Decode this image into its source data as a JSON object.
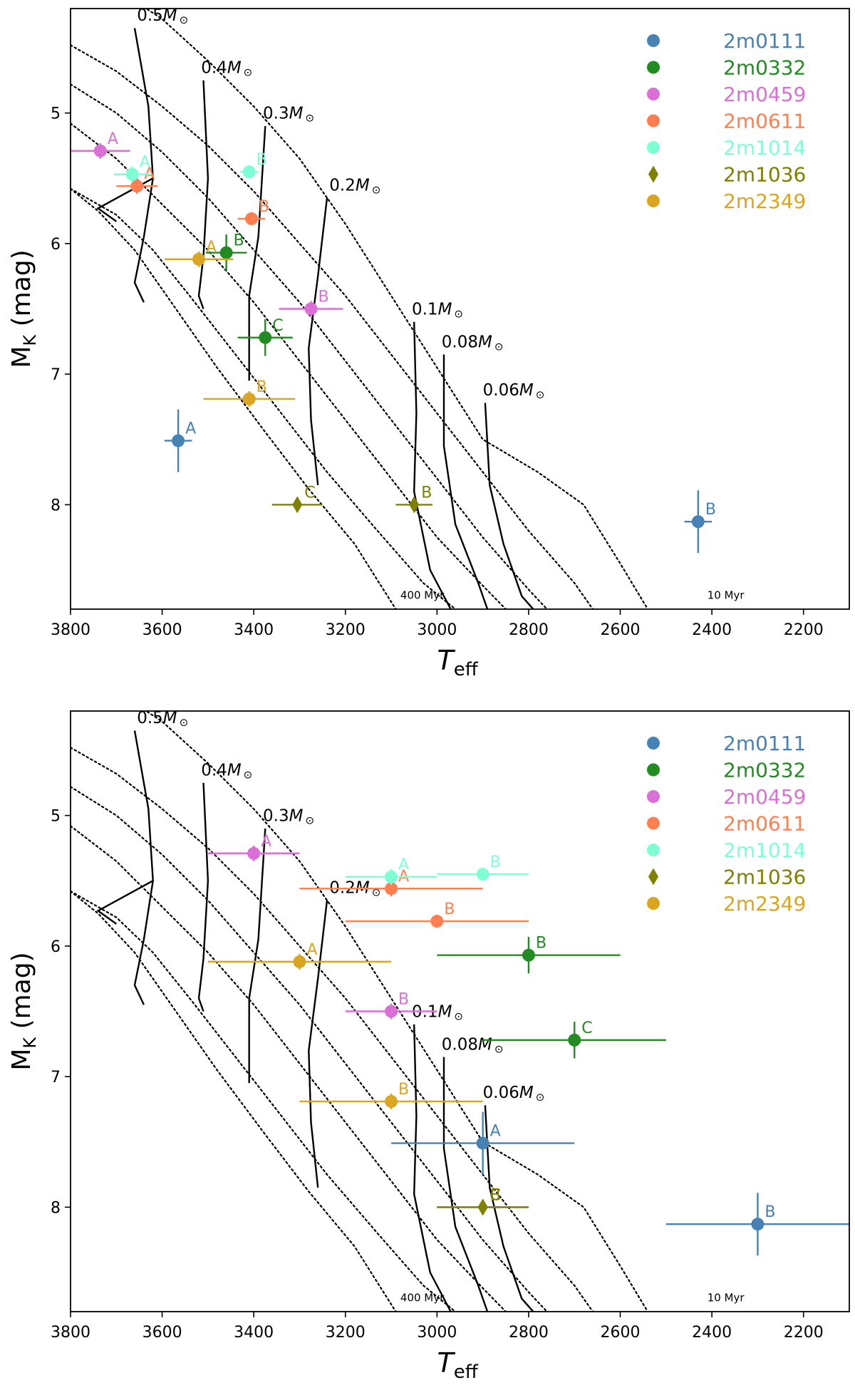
{
  "colors": {
    "2m0111": "#4682b4",
    "2m0332": "#228b22",
    "2m0459": "#da70d6",
    "2m0611": "#ff7f50",
    "2m1014": "#7fffd4",
    "2m1036": "#808000",
    "2m2349": "#daa520"
  },
  "chart_data": [
    {
      "type": "scatter",
      "panel": "top",
      "xlabel": "T",
      "xlabel_sub": "eff",
      "ylabel": "M",
      "ylabel_sub": "K",
      "ylabel_suffix": " (mag)",
      "xlim": [
        3800,
        2100
      ],
      "ylim": [
        8.8,
        4.2
      ],
      "xticks": [
        3800,
        3600,
        3400,
        3200,
        3000,
        2800,
        2600,
        2400,
        2200
      ],
      "yticks": [
        5,
        6,
        7,
        8
      ],
      "legend": {
        "position": "top-right",
        "entries": [
          {
            "name": "2m0111",
            "marker": "circle"
          },
          {
            "name": "2m0332",
            "marker": "circle"
          },
          {
            "name": "2m0459",
            "marker": "circle"
          },
          {
            "name": "2m0611",
            "marker": "circle"
          },
          {
            "name": "2m1014",
            "marker": "circle"
          },
          {
            "name": "2m1036",
            "marker": "diamond"
          },
          {
            "name": "2m2349",
            "marker": "circle"
          }
        ]
      },
      "isochrone_labels": [
        "400 Myr",
        "10 Myr"
      ],
      "isochrones": [
        [
          [
            3800,
            5.58
          ],
          [
            3740,
            5.75
          ],
          [
            3660,
            6.05
          ],
          [
            3580,
            6.45
          ],
          [
            3480,
            6.95
          ],
          [
            3380,
            7.42
          ],
          [
            3280,
            7.88
          ],
          [
            3180,
            8.3
          ],
          [
            3090,
            8.8
          ]
        ],
        [
          [
            3800,
            5.58
          ],
          [
            3700,
            5.78
          ],
          [
            3620,
            6.05
          ],
          [
            3540,
            6.4
          ],
          [
            3440,
            6.85
          ],
          [
            3340,
            7.3
          ],
          [
            3240,
            7.75
          ],
          [
            3130,
            8.2
          ],
          [
            3030,
            8.6
          ],
          [
            2960,
            8.8
          ]
        ],
        [
          [
            3800,
            5.08
          ],
          [
            3700,
            5.35
          ],
          [
            3600,
            5.7
          ],
          [
            3500,
            6.05
          ],
          [
            3400,
            6.45
          ],
          [
            3300,
            6.9
          ],
          [
            3200,
            7.35
          ],
          [
            3100,
            7.8
          ],
          [
            3000,
            8.25
          ],
          [
            2900,
            8.62
          ],
          [
            2850,
            8.8
          ]
        ],
        [
          [
            3800,
            4.78
          ],
          [
            3700,
            5.0
          ],
          [
            3600,
            5.3
          ],
          [
            3500,
            5.65
          ],
          [
            3400,
            6.05
          ],
          [
            3300,
            6.45
          ],
          [
            3200,
            6.9
          ],
          [
            3100,
            7.35
          ],
          [
            3000,
            7.8
          ],
          [
            2900,
            8.25
          ],
          [
            2800,
            8.65
          ],
          [
            2760,
            8.8
          ]
        ],
        [
          [
            3800,
            4.48
          ],
          [
            3700,
            4.68
          ],
          [
            3600,
            4.95
          ],
          [
            3500,
            5.25
          ],
          [
            3400,
            5.6
          ],
          [
            3300,
            6.0
          ],
          [
            3200,
            6.4
          ],
          [
            3100,
            6.85
          ],
          [
            3000,
            7.3
          ],
          [
            2900,
            7.75
          ],
          [
            2800,
            8.2
          ],
          [
            2700,
            8.6
          ],
          [
            2660,
            8.8
          ]
        ],
        [
          [
            3800,
            3.88
          ],
          [
            3700,
            4.05
          ],
          [
            3600,
            4.28
          ],
          [
            3500,
            4.6
          ],
          [
            3400,
            4.95
          ],
          [
            3300,
            5.35
          ],
          [
            3200,
            5.85
          ],
          [
            3100,
            6.4
          ],
          [
            3000,
            6.95
          ],
          [
            2900,
            7.5
          ],
          [
            2780,
            7.75
          ],
          [
            2680,
            8.0
          ],
          [
            2600,
            8.45
          ],
          [
            2540,
            8.8
          ]
        ]
      ],
      "mass_tracks": [
        {
          "label": "0.5",
          "points": [
            [
              3660,
              4.35
            ],
            [
              3630,
              4.95
            ],
            [
              3620,
              5.5
            ],
            [
              3640,
              5.95
            ],
            [
              3660,
              6.3
            ],
            [
              3640,
              6.45
            ]
          ],
          "label_at": [
            3655,
            4.25
          ]
        },
        {
          "label": "0.4",
          "points": [
            [
              3510,
              4.75
            ],
            [
              3500,
              5.5
            ],
            [
              3510,
              6.1
            ],
            [
              3520,
              6.4
            ],
            [
              3510,
              6.5
            ]
          ],
          "label_at": [
            3515,
            4.65
          ]
        },
        {
          "label": "0.3",
          "points": [
            [
              3375,
              5.1
            ],
            [
              3390,
              5.95
            ],
            [
              3410,
              6.4
            ],
            [
              3410,
              7.05
            ]
          ],
          "label_at": [
            3380,
            5.0
          ]
        },
        {
          "label": "0.2",
          "points": [
            [
              3240,
              5.65
            ],
            [
              3260,
              6.25
            ],
            [
              3280,
              6.8
            ],
            [
              3275,
              7.35
            ],
            [
              3260,
              7.85
            ]
          ],
          "label_at": [
            3235,
            5.55
          ]
        },
        {
          "label": "0.1",
          "points": [
            [
              3050,
              6.6
            ],
            [
              3045,
              7.3
            ],
            [
              3050,
              7.9
            ],
            [
              3015,
              8.5
            ],
            [
              2970,
              8.8
            ]
          ],
          "label_at": [
            3055,
            6.5
          ]
        },
        {
          "label": "0.08",
          "points": [
            [
              2985,
              6.85
            ],
            [
              2985,
              7.55
            ],
            [
              2960,
              8.15
            ],
            [
              2910,
              8.6
            ],
            [
              2890,
              8.8
            ]
          ],
          "label_at": [
            2990,
            6.75
          ]
        },
        {
          "label": "0.06",
          "points": [
            [
              2895,
              7.22
            ],
            [
              2885,
              7.85
            ],
            [
              2855,
              8.3
            ],
            [
              2815,
              8.7
            ],
            [
              2790,
              8.8
            ]
          ],
          "label_at": [
            2900,
            7.12
          ]
        }
      ],
      "points": [
        {
          "system": "2m0111",
          "comp": "A",
          "teff": 3565,
          "teff_err": 30,
          "mk": 7.51,
          "mk_err": 0.24,
          "marker": "circle"
        },
        {
          "system": "2m0111",
          "comp": "B",
          "teff": 2430,
          "teff_err": 30,
          "mk": 8.13,
          "mk_err": 0.24,
          "marker": "circle"
        },
        {
          "system": "2m0332",
          "comp": "B",
          "teff": 3460,
          "teff_err": 45,
          "mk": 6.07,
          "mk_err": 0.14,
          "marker": "circle"
        },
        {
          "system": "2m0332",
          "comp": "C",
          "teff": 3375,
          "teff_err": 60,
          "mk": 6.72,
          "mk_err": 0.14,
          "marker": "circle"
        },
        {
          "system": "2m0459",
          "comp": "A",
          "teff": 3735,
          "teff_err": 65,
          "mk": 5.29,
          "mk_err": 0.06,
          "marker": "circle"
        },
        {
          "system": "2m0459",
          "comp": "B",
          "teff": 3275,
          "teff_err": 70,
          "mk": 6.5,
          "mk_err": 0.06,
          "marker": "circle"
        },
        {
          "system": "2m0611",
          "comp": "A",
          "teff": 3655,
          "teff_err": 45,
          "mk": 5.56,
          "mk_err": 0.06,
          "marker": "circle"
        },
        {
          "system": "2m0611",
          "comp": "B",
          "teff": 3405,
          "teff_err": 30,
          "mk": 5.81,
          "mk_err": 0.05,
          "marker": "circle"
        },
        {
          "system": "2m1014",
          "comp": "A",
          "teff": 3665,
          "teff_err": 40,
          "mk": 5.47,
          "mk_err": 0.06,
          "marker": "circle"
        },
        {
          "system": "2m1014",
          "comp": "B",
          "teff": 3410,
          "teff_err": 20,
          "mk": 5.45,
          "mk_err": 0.05,
          "marker": "circle"
        },
        {
          "system": "2m1036",
          "comp": "C",
          "teff": 3305,
          "teff_err": 55,
          "mk": 8.0,
          "mk_err": 0.04,
          "marker": "diamond"
        },
        {
          "system": "2m1036",
          "comp": "B",
          "teff": 3050,
          "teff_err": 40,
          "mk": 8.0,
          "mk_err": 0.04,
          "marker": "diamond"
        },
        {
          "system": "2m2349",
          "comp": "A",
          "teff": 3520,
          "teff_err": 75,
          "mk": 6.12,
          "mk_err": 0.06,
          "marker": "circle"
        },
        {
          "system": "2m2349",
          "comp": "B",
          "teff": 3410,
          "teff_err": 100,
          "mk": 7.19,
          "mk_err": 0.06,
          "marker": "circle"
        }
      ]
    },
    {
      "type": "scatter",
      "panel": "bottom",
      "xlabel": "T",
      "xlabel_sub": "eff",
      "ylabel": "M",
      "ylabel_sub": "K",
      "ylabel_suffix": " (mag)",
      "xlim": [
        3800,
        2100
      ],
      "ylim": [
        8.8,
        4.2
      ],
      "xticks": [
        3800,
        3600,
        3400,
        3200,
        3000,
        2800,
        2600,
        2400,
        2200
      ],
      "yticks": [
        5,
        6,
        7,
        8
      ],
      "legend": {
        "position": "top-right",
        "entries": [
          {
            "name": "2m0111",
            "marker": "circle"
          },
          {
            "name": "2m0332",
            "marker": "circle"
          },
          {
            "name": "2m0459",
            "marker": "circle"
          },
          {
            "name": "2m0611",
            "marker": "circle"
          },
          {
            "name": "2m1014",
            "marker": "circle"
          },
          {
            "name": "2m1036",
            "marker": "diamond"
          },
          {
            "name": "2m2349",
            "marker": "circle"
          }
        ]
      },
      "isochrone_labels": [
        "400 Myr.",
        "10 Myr"
      ],
      "isochrones": "same as top panel",
      "mass_tracks": "same as top panel",
      "points": [
        {
          "system": "2m0111",
          "comp": "A",
          "teff": 2900,
          "teff_err": 200,
          "mk": 7.51,
          "mk_err": 0.24,
          "marker": "circle"
        },
        {
          "system": "2m0111",
          "comp": "B",
          "teff": 2300,
          "teff_err": 200,
          "mk": 8.13,
          "mk_err": 0.24,
          "marker": "circle"
        },
        {
          "system": "2m0332",
          "comp": "B",
          "teff": 2800,
          "teff_err": 200,
          "mk": 6.07,
          "mk_err": 0.14,
          "marker": "circle"
        },
        {
          "system": "2m0332",
          "comp": "C",
          "teff": 2700,
          "teff_err": 200,
          "mk": 6.72,
          "mk_err": 0.14,
          "marker": "circle"
        },
        {
          "system": "2m0459",
          "comp": "A",
          "teff": 3400,
          "teff_err": 100,
          "mk": 5.29,
          "mk_err": 0.06,
          "marker": "circle"
        },
        {
          "system": "2m0459",
          "comp": "B",
          "teff": 3100,
          "teff_err": 100,
          "mk": 6.5,
          "mk_err": 0.06,
          "marker": "circle"
        },
        {
          "system": "2m0611",
          "comp": "A",
          "teff": 3100,
          "teff_err": 200,
          "mk": 5.56,
          "mk_err": 0.06,
          "marker": "circle"
        },
        {
          "system": "2m0611",
          "comp": "B",
          "teff": 3000,
          "teff_err": 200,
          "mk": 5.81,
          "mk_err": 0.05,
          "marker": "circle"
        },
        {
          "system": "2m1014",
          "comp": "A",
          "teff": 3100,
          "teff_err": 100,
          "mk": 5.47,
          "mk_err": 0.06,
          "marker": "circle"
        },
        {
          "system": "2m1014",
          "comp": "B",
          "teff": 2900,
          "teff_err": 100,
          "mk": 5.45,
          "mk_err": 0.05,
          "marker": "circle"
        },
        {
          "system": "2m1036",
          "comp": "C",
          "teff": 2900,
          "teff_err": 100,
          "mk": 8.0,
          "mk_err": 0.04,
          "marker": "diamond"
        },
        {
          "system": "2m1036",
          "comp": "B",
          "teff": 2900,
          "teff_err": 100,
          "mk": 8.0,
          "mk_err": 0.04,
          "marker": "diamond"
        },
        {
          "system": "2m2349",
          "comp": "A",
          "teff": 3300,
          "teff_err": 200,
          "mk": 6.12,
          "mk_err": 0.06,
          "marker": "circle"
        },
        {
          "system": "2m2349",
          "comp": "B",
          "teff": 3100,
          "teff_err": 200,
          "mk": 7.19,
          "mk_err": 0.06,
          "marker": "circle"
        }
      ]
    }
  ]
}
